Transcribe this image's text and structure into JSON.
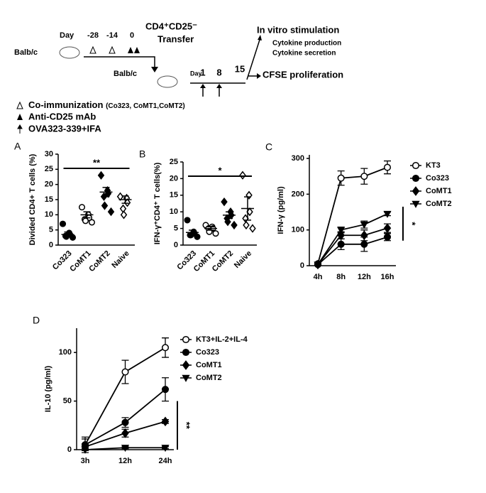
{
  "diagram": {
    "step1": {
      "mouse": "Balb/c",
      "day": "Day",
      "days": [
        "-28",
        "-14",
        "0"
      ],
      "transfer": "CD4⁺CD25⁻",
      "transfer2": "Transfer"
    },
    "step2": {
      "mouse": "Balb/c",
      "day": "Day",
      "days": [
        "1",
        "8",
        "15"
      ]
    },
    "outcomes": {
      "stim": "In vitro stimulation",
      "prod": "Cytokine production",
      "secr": "Cytokine secretion",
      "cfse": "CFSE proliferation"
    },
    "legend": {
      "coimm": "Co-immunization",
      "coimm_detail": "(Co323, CoMT1,CoMT2)",
      "anti": "Anti-CD25 mAb",
      "ova": "OVA323-339+IFA"
    }
  },
  "chart_data": [
    {
      "type": "dot",
      "panel": "A",
      "ylabel": "Divided CD4+ T cells (%)",
      "categories": [
        "Co323",
        "CoMT1",
        "CoMT2",
        "Naive"
      ],
      "ylim": [
        0,
        30
      ],
      "yticks": [
        0,
        5,
        10,
        15,
        20,
        25,
        30
      ],
      "significance": "**",
      "groups": [
        {
          "marker": "circle",
          "points": [
            7,
            4,
            3.5,
            3,
            2.8,
            2.5
          ],
          "mean": 3.5,
          "sem": 0.8
        },
        {
          "marker": "open-circle",
          "points": [
            12.5,
            10,
            9,
            8.5,
            8,
            7.5
          ],
          "mean": 10,
          "sem": 1
        },
        {
          "marker": "diamond",
          "points": [
            23,
            18,
            17,
            16,
            13,
            11
          ],
          "mean": 17.5,
          "sem": 1.5
        },
        {
          "marker": "open-diamond",
          "points": [
            16,
            15.5,
            14,
            12,
            10
          ],
          "mean": 15,
          "sem": 1.2
        }
      ]
    },
    {
      "type": "dot",
      "panel": "B",
      "ylabel": "IFN-γ⁺CD4⁺ T cells(%)",
      "categories": [
        "Co323",
        "CoMT1",
        "CoMT2",
        "Naive"
      ],
      "ylim": [
        0,
        25
      ],
      "yticks": [
        0,
        5,
        10,
        15,
        20,
        25
      ],
      "significance": "*",
      "groups": [
        {
          "marker": "circle",
          "points": [
            7.5,
            4,
            3.5,
            3,
            3,
            2.5
          ],
          "mean": 3.8,
          "sem": 0.7
        },
        {
          "marker": "open-circle",
          "points": [
            6,
            5.5,
            5,
            5,
            4,
            3.5
          ],
          "mean": 5,
          "sem": 0.5
        },
        {
          "marker": "diamond",
          "points": [
            13,
            10,
            9,
            8,
            7,
            6
          ],
          "mean": 9,
          "sem": 1
        },
        {
          "marker": "open-diamond",
          "points": [
            21,
            15,
            10,
            8,
            6,
            5
          ],
          "mean": 11,
          "sem": 3.5
        }
      ]
    },
    {
      "type": "line",
      "panel": "C",
      "ylabel": "IFN-γ (pg/ml)",
      "categories": [
        "4h",
        "8h",
        "12h",
        "16h"
      ],
      "ylim": [
        0,
        310
      ],
      "yticks": [
        0,
        100,
        200,
        300
      ],
      "significance": "*",
      "series": [
        {
          "name": "KT3",
          "marker": "open-circle",
          "values": [
            5,
            245,
            250,
            275
          ],
          "errors": [
            3,
            20,
            22,
            18
          ]
        },
        {
          "name": "Co323",
          "marker": "circle",
          "values": [
            3,
            60,
            60,
            80
          ],
          "errors": [
            2,
            15,
            20,
            10
          ]
        },
        {
          "name": "CoMT1",
          "marker": "diamond",
          "values": [
            3,
            85,
            85,
            105
          ],
          "errors": [
            2,
            10,
            15,
            12
          ]
        },
        {
          "name": "CoMT2",
          "marker": "triangle-down",
          "values": [
            3,
            100,
            115,
            145
          ],
          "errors": [
            2,
            8,
            10,
            5
          ]
        }
      ]
    },
    {
      "type": "line",
      "panel": "D",
      "ylabel": "IL-10 (pg/ml)",
      "categories": [
        "3h",
        "12h",
        "24h"
      ],
      "ylim": [
        0,
        125
      ],
      "yticks": [
        0,
        50,
        100
      ],
      "significance": "**",
      "series": [
        {
          "name": "KT3+IL-2+IL-4",
          "marker": "open-circle",
          "values": [
            5,
            80,
            105
          ],
          "errors": [
            8,
            12,
            10
          ]
        },
        {
          "name": "Co323",
          "marker": "circle",
          "values": [
            5,
            28,
            62
          ],
          "errors": [
            6,
            5,
            12
          ]
        },
        {
          "name": "CoMT1",
          "marker": "diamond",
          "values": [
            3,
            17,
            29
          ],
          "errors": [
            3,
            4,
            2
          ]
        },
        {
          "name": "CoMT2",
          "marker": "triangle-down",
          "values": [
            0,
            2,
            2
          ],
          "errors": [
            1,
            1,
            1
          ]
        }
      ]
    }
  ]
}
